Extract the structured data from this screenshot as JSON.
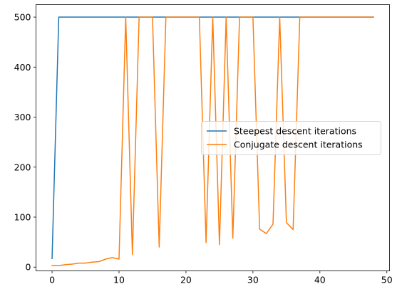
{
  "chart_data": {
    "type": "line",
    "title": "",
    "xlabel": "",
    "ylabel": "",
    "xlim": [
      -2.4,
      50.4
    ],
    "ylim": [
      -7.5,
      525
    ],
    "xticks": [
      0,
      10,
      20,
      30,
      40,
      50
    ],
    "yticks": [
      0,
      100,
      200,
      300,
      400,
      500
    ],
    "grid": false,
    "legend_position": "center-right",
    "series": [
      {
        "name": "Steepest descent iterations",
        "color": "#1f77b4",
        "x": [
          0,
          1,
          2,
          3,
          4,
          5,
          6,
          7,
          8,
          9,
          10,
          11,
          12,
          13,
          14,
          15,
          16,
          17,
          18,
          19,
          20,
          21,
          22,
          23,
          24,
          25,
          26,
          27,
          28,
          29,
          30,
          31,
          32,
          33,
          34,
          35,
          36,
          37,
          38,
          39,
          40,
          41,
          42,
          43,
          44,
          45,
          46,
          47,
          48
        ],
        "y": [
          17,
          500,
          500,
          500,
          500,
          500,
          500,
          500,
          500,
          500,
          500,
          500,
          500,
          500,
          500,
          500,
          500,
          500,
          500,
          500,
          500,
          500,
          500,
          500,
          500,
          500,
          500,
          500,
          500,
          500,
          500,
          500,
          500,
          500,
          500,
          500,
          500,
          500,
          500,
          500,
          500,
          500,
          500,
          500,
          500,
          500,
          500,
          500,
          500
        ]
      },
      {
        "name": "Conjugate descent iterations",
        "color": "#ff7f0e",
        "x": [
          0,
          1,
          2,
          3,
          4,
          5,
          6,
          7,
          8,
          9,
          10,
          11,
          12,
          13,
          14,
          15,
          16,
          17,
          18,
          19,
          20,
          21,
          22,
          23,
          24,
          25,
          26,
          27,
          28,
          29,
          30,
          31,
          32,
          33,
          34,
          35,
          36,
          37,
          38,
          39,
          40,
          41,
          42,
          43,
          44,
          45,
          46,
          47,
          48
        ],
        "y": [
          3,
          3,
          5,
          6,
          8,
          8,
          10,
          11,
          16,
          19,
          16,
          500,
          25,
          500,
          500,
          500,
          40,
          500,
          500,
          500,
          500,
          500,
          500,
          49,
          500,
          45,
          500,
          58,
          500,
          500,
          500,
          76,
          67,
          86,
          500,
          89,
          75,
          500,
          500,
          500,
          500,
          500,
          500,
          500,
          500,
          500,
          500,
          500,
          500
        ]
      }
    ]
  }
}
